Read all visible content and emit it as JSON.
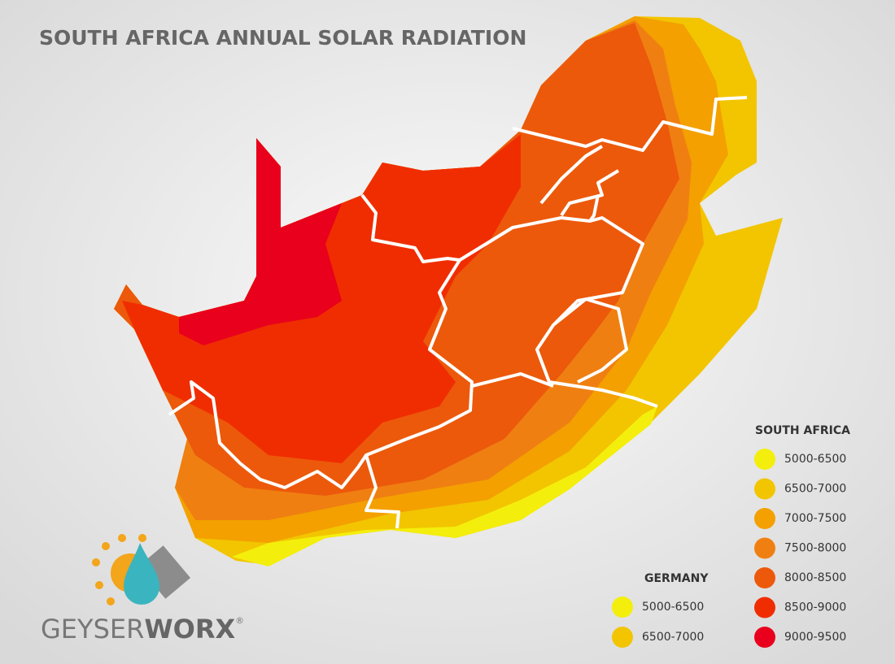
{
  "title": "SOUTH AFRICA ANNUAL SOLAR RADIATION",
  "legend_south_africa": {
    "heading": "SOUTH AFRICA",
    "entries": [
      {
        "label": "5000-6500",
        "color": "#f4ee0c"
      },
      {
        "label": "6500-7000",
        "color": "#f2c500"
      },
      {
        "label": "7000-7500",
        "color": "#f3a000"
      },
      {
        "label": "7500-8000",
        "color": "#f07f12"
      },
      {
        "label": "8000-8500",
        "color": "#ec590b"
      },
      {
        "label": "8500-9000",
        "color": "#f02d00"
      },
      {
        "label": "9000-9500",
        "color": "#e8001c"
      }
    ]
  },
  "legend_germany": {
    "heading": "GERMANY",
    "entries": [
      {
        "label": "5000-6500",
        "color": "#f4ee0c"
      },
      {
        "label": "6500-7000",
        "color": "#f2c500"
      }
    ]
  },
  "logo": {
    "prefix": "GEYSER",
    "emphasis": "WORX",
    "mark": "®"
  }
}
